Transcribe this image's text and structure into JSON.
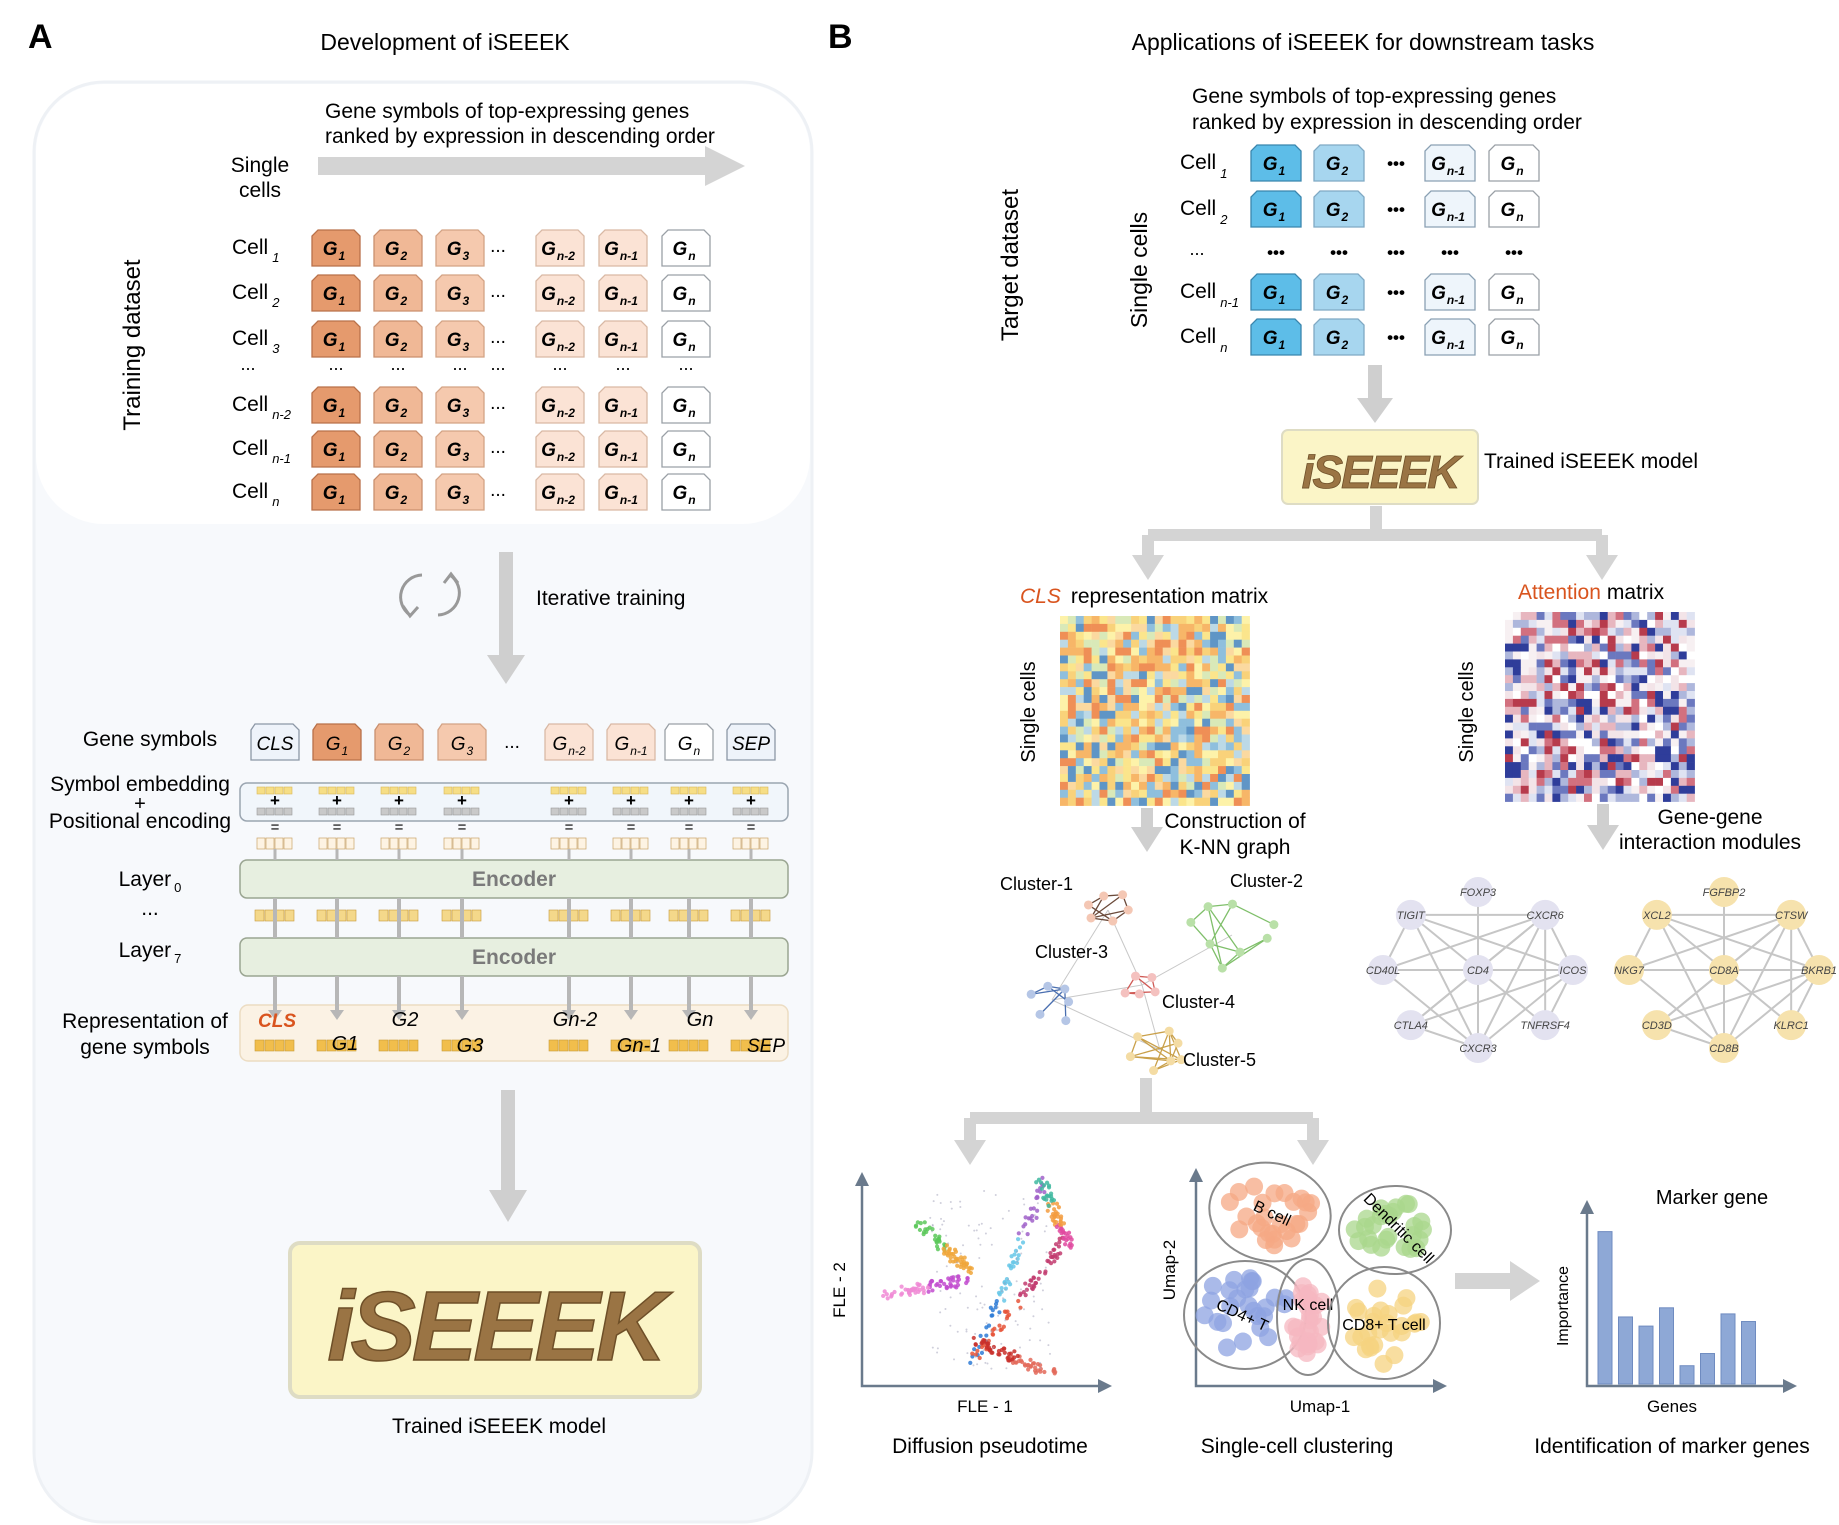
{
  "panel_a": {
    "letter": "A",
    "title": "Development of iSEEEK",
    "arrow_caption_line1": "Gene symbols of top-expressing genes",
    "arrow_caption_line2": "ranked by expression in descending order",
    "single_cells_line1": "Single",
    "single_cells_line2": "cells",
    "training_dataset": "Training dataset",
    "cell_word": "Cell",
    "row_subscripts": [
      "1",
      "2",
      "3",
      "n-2",
      "n-1",
      "n"
    ],
    "ellipsis": "...",
    "gene_letter": "G",
    "gene_subscripts": [
      "1",
      "2",
      "3",
      "n-2",
      "n-1",
      "n"
    ],
    "iterative_training": "Iterative training",
    "gene_symbols": "Gene symbols",
    "cls": "CLS",
    "sep": "SEP",
    "symbol_embedding": "Symbol embedding",
    "plus": "+",
    "equals": "=",
    "positional_encoding": "Positional encoding",
    "layer_word": "Layer",
    "layer_first_sub": "0",
    "layer_last_sub": "7",
    "encoder": "Encoder",
    "representation_line1": "Representation of",
    "representation_line2": "gene symbols",
    "rep_labels": [
      "G1",
      "G2",
      "G3",
      "Gn-2",
      "Gn-1",
      "Gn"
    ],
    "model_logo": "iSEEEK",
    "trained_model": "Trained iSEEEK model"
  },
  "panel_b": {
    "letter": "B",
    "title": "Applications of iSEEEK for downstream tasks",
    "caption_line1": "Gene symbols of top-expressing genes",
    "caption_line2": "ranked by expression in descending order",
    "target_dataset": "Target dataset",
    "single_cells": "Single cells",
    "cell_word": "Cell",
    "row_subscripts": [
      "1",
      "2",
      "n-1",
      "n"
    ],
    "gene_subscripts": [
      "1",
      "2",
      "n-1",
      "n"
    ],
    "dots": "•••",
    "ellipsis": "...",
    "model_logo": "iSEEEK",
    "trained_model": "Trained iSEEEK model",
    "cls_word": "CLS",
    "cls_rest": "representation matrix",
    "attention_word": "Attention",
    "attention_rest": "matrix",
    "knn_line1": "Construction of",
    "knn_line2": "K-NN graph",
    "gene_gene_line1": "Gene-gene",
    "gene_gene_line2": "interaction modules",
    "clusters": [
      "Cluster-1",
      "Cluster-2",
      "Cluster-3",
      "Cluster-4",
      "Cluster-5"
    ],
    "module1_genes": [
      "FOXP3",
      "CXCR6",
      "ICOS",
      "TNFRSF4",
      "CD4",
      "CXCR3",
      "CTLA4",
      "CD40L",
      "TIGIT"
    ],
    "module2_genes": [
      "FGFBP2",
      "CTSW",
      "BKRB1",
      "KLRC1",
      "CD8A",
      "CD8B",
      "CD3D",
      "NKG7",
      "XCL2"
    ],
    "fle_x": "FLE - 1",
    "fle_y": "FLE - 2",
    "diffusion_title": "Diffusion pseudotime",
    "umap_x": "Umap-1",
    "umap_y": "Umap-2",
    "cell_types": [
      "B cell",
      "Dendritic cell",
      "CD4+ T",
      "NK cell",
      "CD8+ T cell"
    ],
    "clustering_title": "Single-cell clustering",
    "marker_title": "Marker gene",
    "importance": "Importance",
    "genes": "Genes",
    "marker_caption": "Identification of marker genes"
  },
  "colors": {
    "g1": "#e59a6d",
    "g2": "#f0b896",
    "g3": "#f5c9ae",
    "g_late": "#fbe3d5",
    "g_last": "#ffffff",
    "blue1": "#5dbde8",
    "blue2": "#a7d6ef",
    "logo_bg": "#fbf5c7",
    "logo_text": "#8a6a3c",
    "encoder": "#e7efe0",
    "token_yellow": "#f4d88a",
    "arrow": "#cfcfcf",
    "accent": "#d9541e"
  },
  "chart_data": {
    "type": "bar",
    "title": "Marker gene",
    "xlabel": "Genes",
    "ylabel": "Importance",
    "categories": [
      "",
      "",
      "",
      "",
      "",
      "",
      "",
      ""
    ],
    "values": [
      1.0,
      0.44,
      0.38,
      0.5,
      0.12,
      0.2,
      0.46,
      0.41
    ],
    "ylim": [
      0,
      1.05
    ]
  }
}
